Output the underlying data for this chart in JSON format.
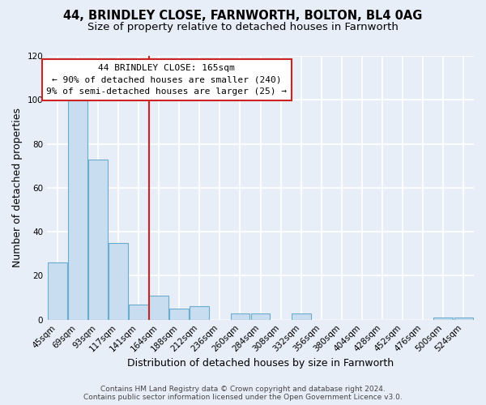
{
  "title": "44, BRINDLEY CLOSE, FARNWORTH, BOLTON, BL4 0AG",
  "subtitle": "Size of property relative to detached houses in Farnworth",
  "xlabel": "Distribution of detached houses by size in Farnworth",
  "ylabel": "Number of detached properties",
  "bin_labels": [
    "45sqm",
    "69sqm",
    "93sqm",
    "117sqm",
    "141sqm",
    "164sqm",
    "188sqm",
    "212sqm",
    "236sqm",
    "260sqm",
    "284sqm",
    "308sqm",
    "332sqm",
    "356sqm",
    "380sqm",
    "404sqm",
    "428sqm",
    "452sqm",
    "476sqm",
    "500sqm",
    "524sqm"
  ],
  "bin_values": [
    26,
    101,
    73,
    35,
    7,
    11,
    5,
    6,
    0,
    3,
    3,
    0,
    3,
    0,
    0,
    0,
    0,
    0,
    0,
    1,
    1
  ],
  "bar_color": "#c8ddf0",
  "bar_edgecolor": "#6aacce",
  "property_line_label": "44 BRINDLEY CLOSE: 165sqm",
  "annotation_line1": "← 90% of detached houses are smaller (240)",
  "annotation_line2": "9% of semi-detached houses are larger (25) →",
  "annotation_box_edgecolor": "#cc2222",
  "annotation_box_facecolor": "#ffffff",
  "vline_color": "#cc2222",
  "vline_bin_index": 5,
  "ylim": [
    0,
    120
  ],
  "yticks": [
    0,
    20,
    40,
    60,
    80,
    100,
    120
  ],
  "footer1": "Contains HM Land Registry data © Crown copyright and database right 2024.",
  "footer2": "Contains public sector information licensed under the Open Government Licence v3.0.",
  "background_color": "#e8eef8",
  "grid_color": "#ffffff",
  "title_fontsize": 10.5,
  "subtitle_fontsize": 9.5,
  "axis_label_fontsize": 9,
  "tick_fontsize": 7.5,
  "annotation_fontsize": 8,
  "footer_fontsize": 6.5
}
